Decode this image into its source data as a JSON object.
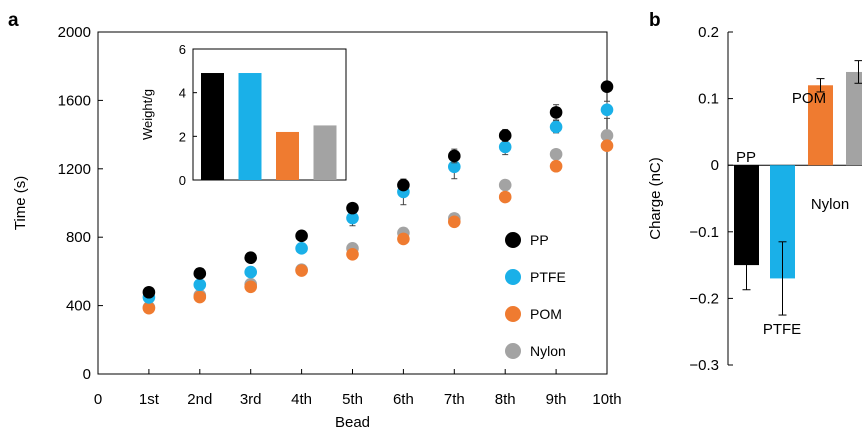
{
  "panel_labels": {
    "a": "a",
    "b": "b"
  },
  "colors": {
    "PP": "#000000",
    "PTFE": "#1ab0e8",
    "POM": "#ef7b30",
    "Nylon": "#a3a3a3"
  },
  "chart_data": [
    {
      "panel": "a",
      "type": "scatter",
      "xlabel": "Bead",
      "ylabel": "Time (s)",
      "x_tick_labels": [
        "0",
        "1st",
        "2nd",
        "3rd",
        "4th",
        "5th",
        "6th",
        "7th",
        "8th",
        "9th",
        "10th"
      ],
      "xlim": [
        0,
        10
      ],
      "ylim": [
        0,
        2000
      ],
      "y_ticks": [
        0,
        400,
        800,
        1200,
        1600,
        2000
      ],
      "legend_position": "lower-right",
      "x": [
        1,
        2,
        3,
        4,
        5,
        6,
        7,
        8,
        9,
        10
      ],
      "series": [
        {
          "name": "PP",
          "color": "#000000",
          "values": [
            478,
            588,
            680,
            808,
            970,
            1105,
            1275,
            1395,
            1530,
            1680
          ],
          "errors": [
            10,
            10,
            12,
            12,
            22,
            20,
            40,
            35,
            45,
            25
          ]
        },
        {
          "name": "PTFE",
          "color": "#1ab0e8",
          "values": [
            448,
            522,
            596,
            735,
            912,
            1065,
            1212,
            1328,
            1445,
            1545
          ],
          "errors": [
            8,
            10,
            12,
            15,
            45,
            75,
            70,
            45,
            35,
            50
          ]
        },
        {
          "name": "POM",
          "color": "#ef7b30",
          "values": [
            385,
            450,
            510,
            605,
            700,
            790,
            890,
            1035,
            1215,
            1335
          ],
          "errors": [
            10,
            10,
            12,
            12,
            15,
            12,
            15,
            20,
            15,
            20
          ]
        },
        {
          "name": "Nylon",
          "color": "#a3a3a3",
          "values": [
            390,
            460,
            525,
            610,
            735,
            825,
            910,
            1105,
            1285,
            1395
          ],
          "errors": [
            8,
            8,
            10,
            10,
            18,
            12,
            10,
            25,
            12,
            30
          ]
        }
      ],
      "inset": {
        "type": "bar",
        "ylabel": "Weight/g",
        "ylim": [
          0,
          6
        ],
        "y_ticks": [
          0,
          2,
          4,
          6
        ],
        "categories": [
          "PP",
          "PTFE",
          "POM",
          "Nylon"
        ],
        "values": [
          4.9,
          4.9,
          2.2,
          2.5
        ],
        "colors": [
          "#000000",
          "#1ab0e8",
          "#ef7b30",
          "#a3a3a3"
        ]
      }
    },
    {
      "panel": "b",
      "type": "bar",
      "ylabel": "Charge (nC)",
      "ylim": [
        -0.3,
        0.2
      ],
      "y_ticks": [
        "0.2",
        "0.1",
        "0",
        "−0.1",
        "−0.2",
        "−0.3"
      ],
      "y_tick_values": [
        0.2,
        0.1,
        0,
        -0.1,
        -0.2,
        -0.3
      ],
      "categories": [
        "PP",
        "PTFE",
        "POM",
        "Nylon"
      ],
      "values": [
        -0.15,
        -0.17,
        0.12,
        0.14
      ],
      "errors": [
        0.037,
        0.055,
        0.01,
        0.017
      ],
      "colors": [
        "#000000",
        "#1ab0e8",
        "#ef7b30",
        "#a3a3a3"
      ]
    }
  ]
}
